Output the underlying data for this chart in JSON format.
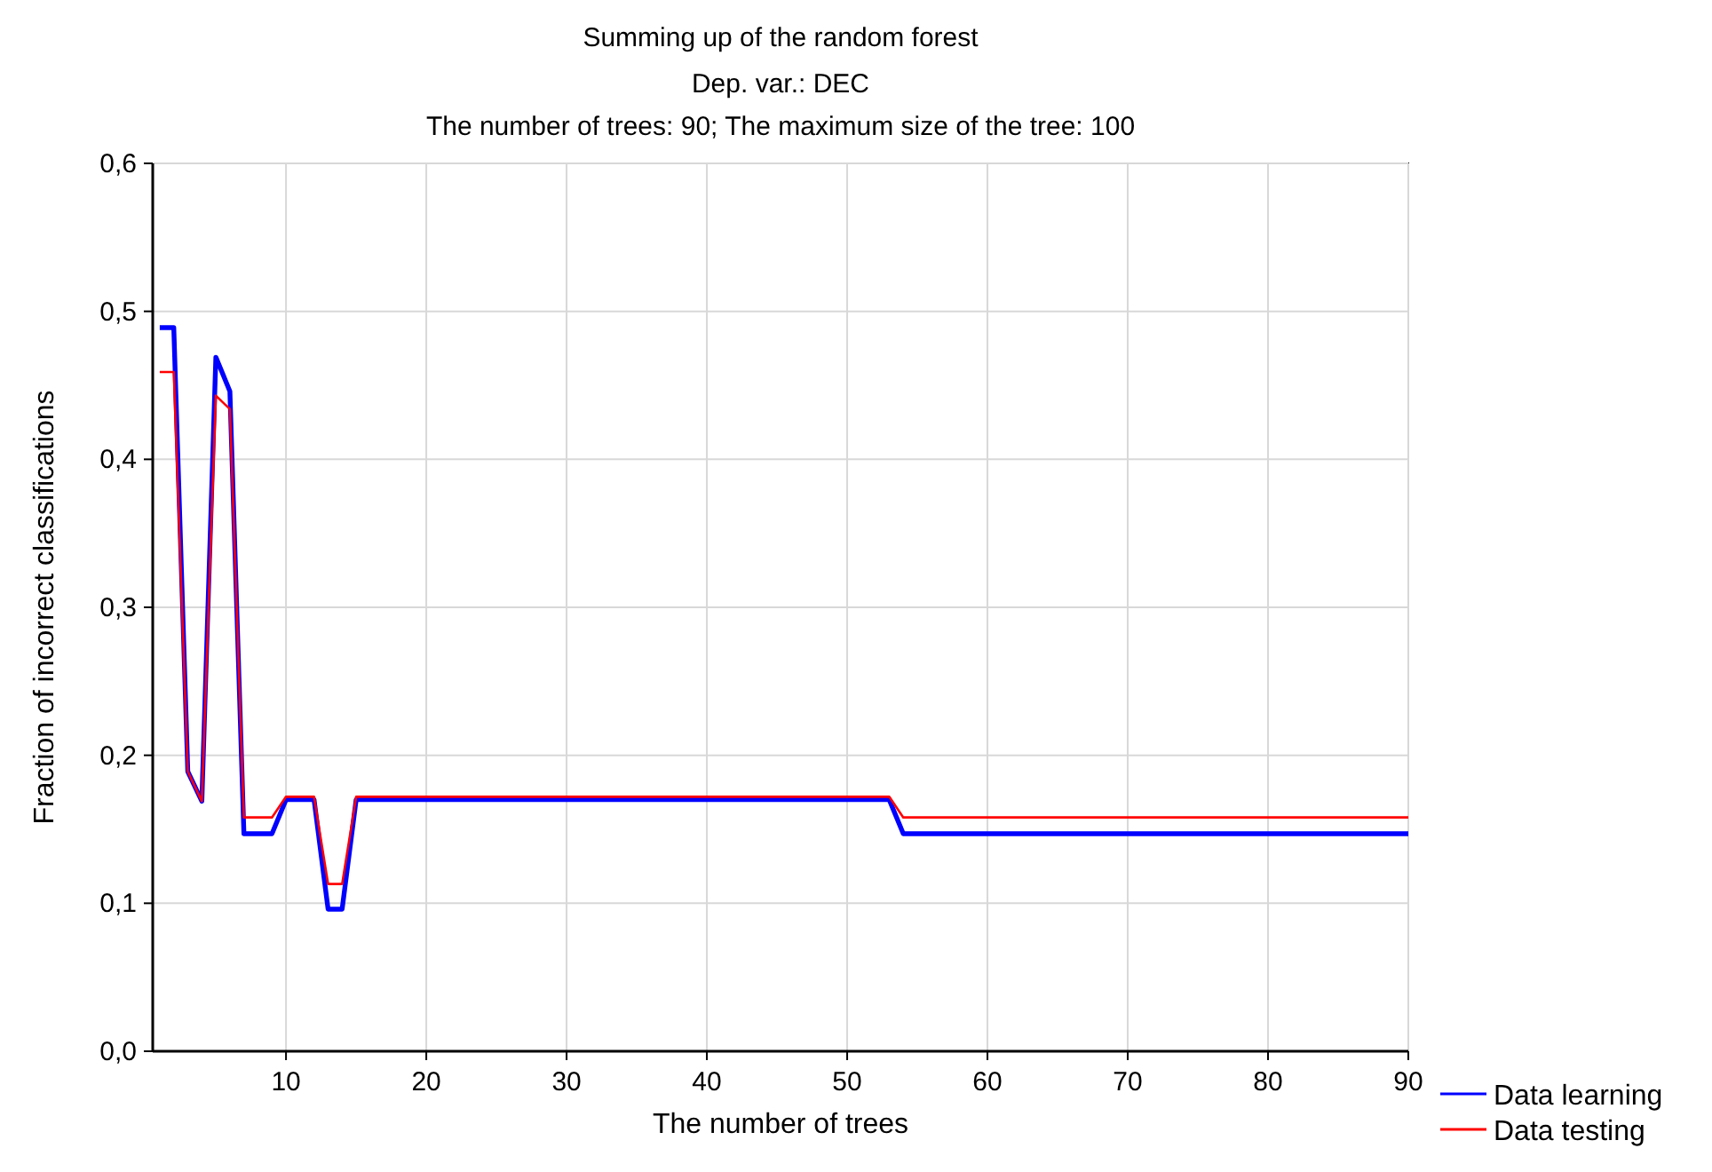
{
  "chart_data": {
    "type": "line",
    "title": "Summing up of the random forest",
    "subtitle": "Dep. var.: DEC\nThe number of trees: 90; The maximum size of the tree: 100",
    "xlabel": "The number of trees",
    "ylabel": "Fraction of incorrect classifications",
    "xlim": [
      0.5,
      90
    ],
    "xticks": [
      10,
      20,
      30,
      40,
      50,
      60,
      70,
      80,
      90
    ],
    "ylim": [
      0,
      0.6
    ],
    "yticks": [
      {
        "value": 0,
        "label": "0,0"
      },
      {
        "value": 0.1,
        "label": "0,1"
      },
      {
        "value": 0.2,
        "label": "0,2"
      },
      {
        "value": 0.3,
        "label": "0,3"
      },
      {
        "value": 0.4,
        "label": "0,4"
      },
      {
        "value": 0.5,
        "label": "0,5"
      },
      {
        "value": 0.6,
        "label": "0,6"
      }
    ],
    "grid": true,
    "legend": "bottom right",
    "marker": "none",
    "line_style": "solid",
    "series": [
      {
        "name": "Data learning",
        "color": "#0000ff",
        "x": [
          1,
          2,
          3,
          4,
          5,
          6,
          7,
          9,
          10,
          12,
          13,
          14,
          15,
          53,
          54,
          90
        ],
        "values": [
          0.489,
          0.489,
          0.189,
          0.169,
          0.469,
          0.446,
          0.147,
          0.147,
          0.17,
          0.17,
          0.096,
          0.096,
          0.17,
          0.17,
          0.147,
          0.147
        ]
      },
      {
        "name": "Data testing",
        "color": "#ff0000",
        "x": [
          1,
          2,
          3,
          4,
          5,
          6,
          7,
          9,
          10,
          12,
          13,
          14,
          15,
          53,
          54,
          90
        ],
        "values": [
          0.459,
          0.459,
          0.189,
          0.169,
          0.443,
          0.434,
          0.158,
          0.158,
          0.172,
          0.172,
          0.113,
          0.113,
          0.172,
          0.172,
          0.158,
          0.158
        ]
      }
    ]
  }
}
